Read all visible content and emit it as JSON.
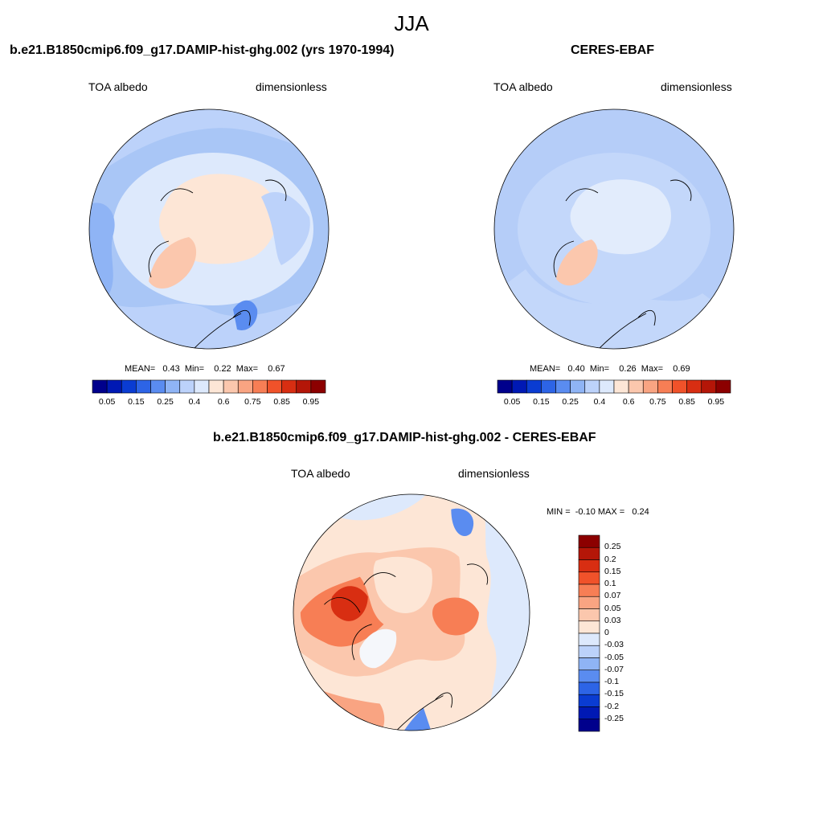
{
  "season": "JJA",
  "colors": {
    "abs_levels": [
      "#00008c",
      "#0019b4",
      "#0a3cd2",
      "#2d64e6",
      "#5a8cf0",
      "#8fb4f5",
      "#bcd2fa",
      "#dde9fc",
      "#fde6d6",
      "#fbc7ad",
      "#f9a482",
      "#f77e55",
      "#f0522a",
      "#d82e12",
      "#b41608",
      "#8c0000"
    ],
    "diff_levels": [
      "#00008c",
      "#0019b4",
      "#0a3cd2",
      "#2d64e6",
      "#5a8cf0",
      "#8fb4f5",
      "#bcd2fa",
      "#dde9fc",
      "#fde6d6",
      "#fbc7ad",
      "#f9a482",
      "#f77e55",
      "#f0522a",
      "#d82e12",
      "#b41608",
      "#8c0000"
    ]
  },
  "panels": [
    {
      "title": "b.e21.B1850cmip6.f09_g17.DAMIP-hist-ghg.002 (yrs 1970-1994)",
      "left_label": "TOA albedo",
      "right_label": "dimensionless",
      "stats_text": "MEAN=   0.43  Min=    0.22  Max=    0.67",
      "colorbar_ticks": [
        "0.05",
        "0.15",
        "0.25",
        "0.4",
        "0.6",
        "0.75",
        "0.85",
        "0.95"
      ]
    },
    {
      "title": "CERES-EBAF",
      "left_label": "TOA albedo",
      "right_label": "dimensionless",
      "stats_text": "MEAN=   0.40  Min=    0.26  Max=    0.69",
      "colorbar_ticks": [
        "0.05",
        "0.15",
        "0.25",
        "0.4",
        "0.6",
        "0.75",
        "0.85",
        "0.95"
      ]
    }
  ],
  "difference": {
    "title": "b.e21.B1850cmip6.f09_g17.DAMIP-hist-ghg.002 - CERES-EBAF",
    "left_label": "TOA albedo",
    "right_label": "dimensionless",
    "minmax_text": "MIN =  -0.10 MAX =   0.24",
    "colorbar_ticks": [
      "0.25",
      "0.2",
      "0.15",
      "0.1",
      "0.07",
      "0.05",
      "0.03",
      "0",
      "-0.03",
      "-0.05",
      "-0.07",
      "-0.1",
      "-0.15",
      "-0.2",
      "-0.25"
    ]
  }
}
